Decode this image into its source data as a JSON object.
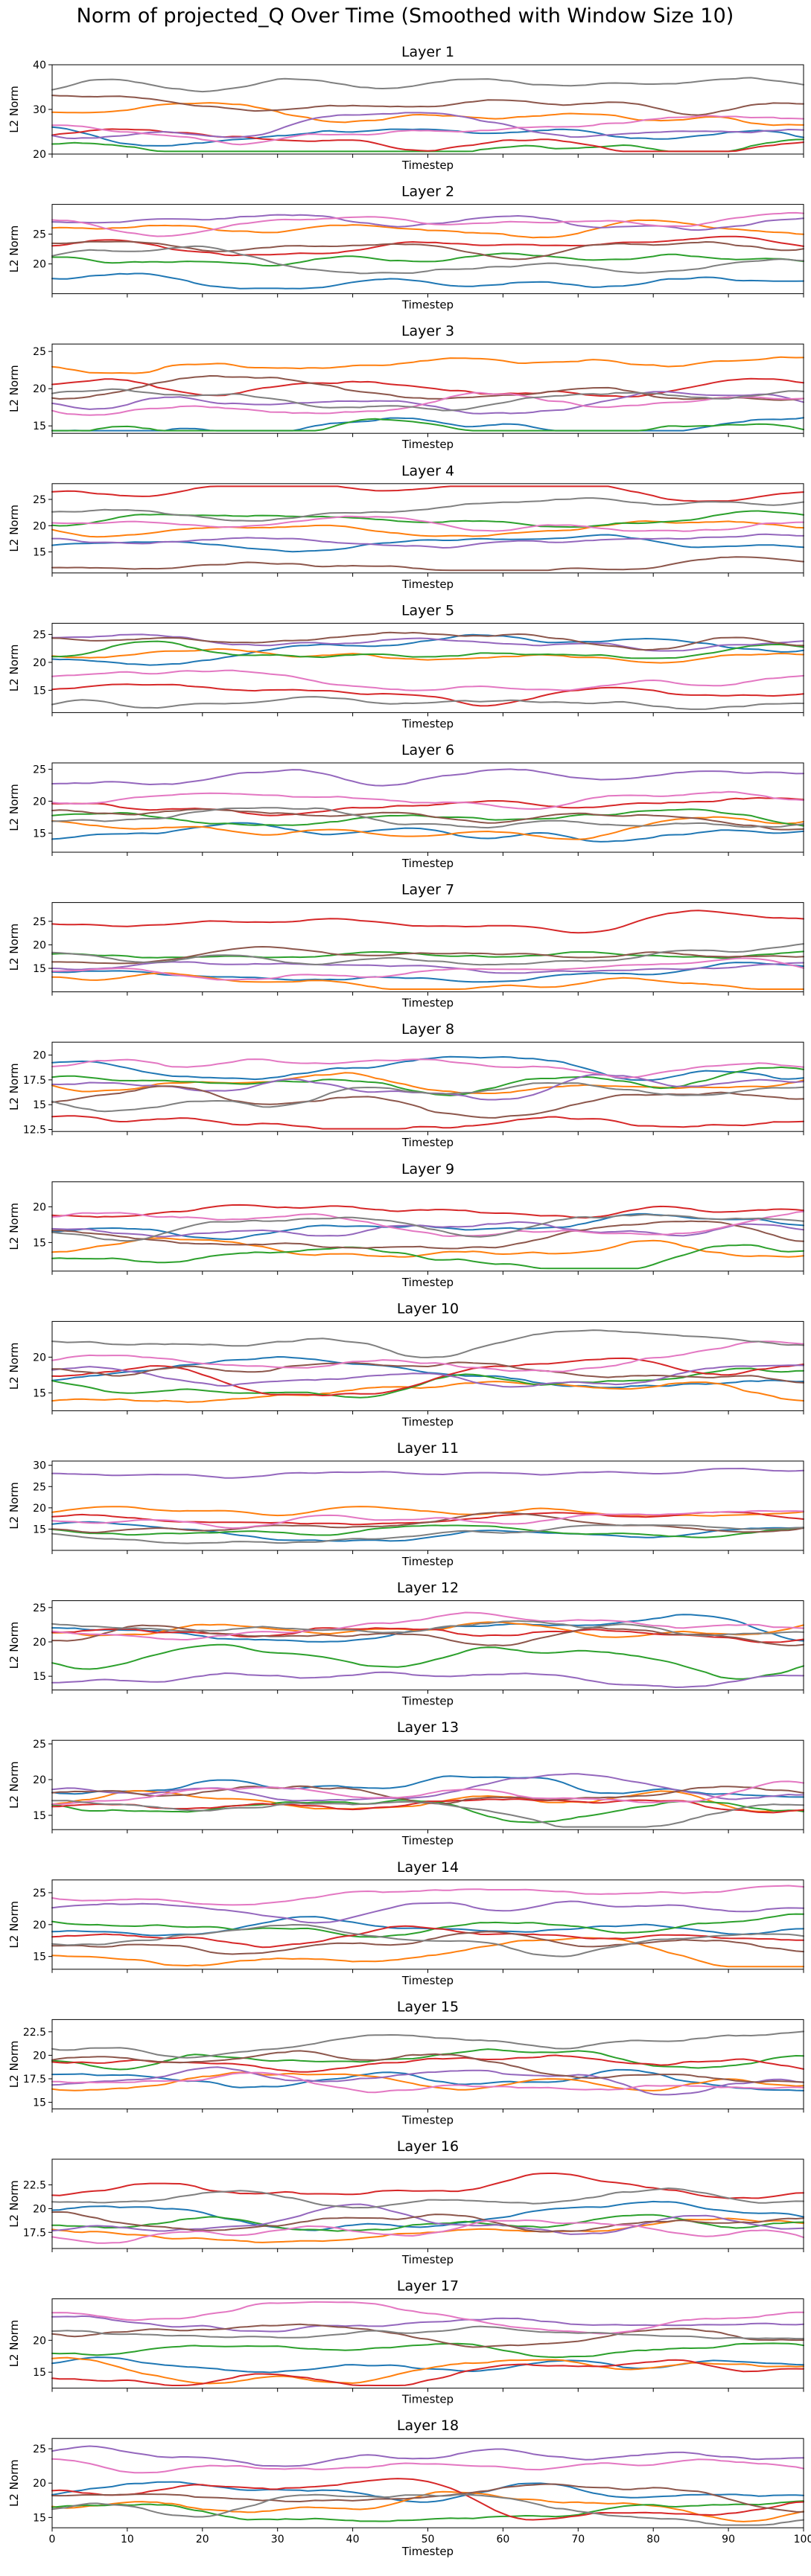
{
  "chart_data": {
    "type": "line",
    "title": "Norm of projected_Q Over Time (Smoothed with Window Size 10)",
    "xlabel": "Timestep",
    "ylabel": "L2 Norm",
    "grid": false,
    "xlim": [
      0,
      100
    ],
    "x_ticks": [
      0,
      10,
      20,
      30,
      40,
      50,
      60,
      70,
      80,
      90,
      100
    ],
    "colors": [
      "#1f77b4",
      "#ff7f0e",
      "#2ca02c",
      "#d62728",
      "#9467bd",
      "#8c564b",
      "#e377c2",
      "#7f7f7f"
    ],
    "panels": [
      {
        "title": "Layer 1",
        "ylim": [
          20,
          40
        ],
        "yticks": [
          20,
          30,
          40
        ],
        "levels": [
          24.5,
          29.5,
          22.0,
          23.5,
          26.5,
          31.5,
          25.5,
          35.5
        ],
        "amp": 1.2
      },
      {
        "title": "Layer 2",
        "ylim": [
          15,
          30
        ],
        "yticks": [
          20,
          25
        ],
        "levels": [
          17.5,
          26.0,
          20.5,
          22.5,
          27.5,
          23.0,
          27.0,
          21.0
        ],
        "amp": 0.8
      },
      {
        "title": "Layer 3",
        "ylim": [
          14,
          26
        ],
        "yticks": [
          15,
          20,
          25
        ],
        "levels": [
          14.5,
          23.5,
          15.0,
          20.0,
          18.0,
          19.5,
          18.5,
          19.0
        ],
        "amp": 0.8
      },
      {
        "title": "Layer 4",
        "ylim": [
          11,
          28
        ],
        "yticks": [
          15,
          20,
          25
        ],
        "levels": [
          16.0,
          20.5,
          22.0,
          25.5,
          17.0,
          13.0,
          21.5,
          23.0
        ],
        "amp": 0.8
      },
      {
        "title": "Layer 5",
        "ylim": [
          11,
          27
        ],
        "yticks": [
          15,
          20,
          25
        ],
        "levels": [
          22.5,
          21.0,
          21.5,
          15.0,
          24.0,
          24.5,
          17.0,
          12.5
        ],
        "amp": 0.8
      },
      {
        "title": "Layer 6",
        "ylim": [
          12,
          26
        ],
        "yticks": [
          15,
          20,
          25
        ],
        "levels": [
          14.5,
          16.5,
          17.0,
          20.5,
          23.0,
          18.0,
          20.0,
          17.0
        ],
        "amp": 0.8
      },
      {
        "title": "Layer 7",
        "ylim": [
          10,
          29
        ],
        "yticks": [
          15,
          20,
          25
        ],
        "levels": [
          14.5,
          12.0,
          18.5,
          24.5,
          15.0,
          17.5,
          14.0,
          18.0
        ],
        "amp": 0.8
      },
      {
        "title": "Layer 8",
        "ylim": [
          12.3,
          21.3
        ],
        "yticks": [
          12.5,
          15.0,
          17.5,
          20.0
        ],
        "levels": [
          19.0,
          17.5,
          17.5,
          13.5,
          17.0,
          15.0,
          18.5,
          16.0
        ],
        "amp": 0.6
      },
      {
        "title": "Layer 9",
        "ylim": [
          11,
          23.5
        ],
        "yticks": [
          15,
          20
        ],
        "levels": [
          17.0,
          14.0,
          12.5,
          19.5,
          16.5,
          16.0,
          18.5,
          17.0
        ],
        "amp": 0.8
      },
      {
        "title": "Layer 10",
        "ylim": [
          12.5,
          25
        ],
        "yticks": [
          15,
          20
        ],
        "levels": [
          16.5,
          14.5,
          17.0,
          17.5,
          17.0,
          17.5,
          19.5,
          22.0
        ],
        "amp": 0.8
      },
      {
        "title": "Layer 11",
        "ylim": [
          10,
          31
        ],
        "yticks": [
          15,
          20,
          25,
          30
        ],
        "levels": [
          14.0,
          19.5,
          15.5,
          17.0,
          27.5,
          16.0,
          17.5,
          13.5
        ],
        "amp": 0.8
      },
      {
        "title": "Layer 12",
        "ylim": [
          13,
          26
        ],
        "yticks": [
          15,
          20,
          25
        ],
        "levels": [
          21.5,
          22.0,
          17.5,
          21.5,
          15.0,
          21.0,
          22.0,
          22.5
        ],
        "amp": 0.8
      },
      {
        "title": "Layer 13",
        "ylim": [
          13,
          25.5
        ],
        "yticks": [
          15,
          20,
          25
        ],
        "levels": [
          19.5,
          16.5,
          15.5,
          17.0,
          18.5,
          17.5,
          18.0,
          16.0
        ],
        "amp": 0.8
      },
      {
        "title": "Layer 14",
        "ylim": [
          13,
          27
        ],
        "yticks": [
          15,
          20,
          25
        ],
        "levels": [
          19.0,
          15.0,
          20.0,
          18.0,
          22.5,
          16.5,
          25.0,
          17.5
        ],
        "amp": 0.8
      },
      {
        "title": "Layer 15",
        "ylim": [
          14.3,
          23.8
        ],
        "yticks": [
          15.0,
          17.5,
          20.0,
          22.5
        ],
        "levels": [
          17.0,
          17.5,
          20.0,
          19.0,
          17.5,
          19.0,
          16.5,
          21.0
        ],
        "amp": 0.6
      },
      {
        "title": "Layer 16",
        "ylim": [
          15.8,
          25.2
        ],
        "yticks": [
          17.5,
          20.0,
          22.5
        ],
        "levels": [
          19.0,
          18.0,
          18.5,
          21.5,
          18.0,
          18.5,
          17.5,
          21.5
        ],
        "amp": 0.6
      },
      {
        "title": "Layer 17",
        "ylim": [
          12.5,
          26.5
        ],
        "yticks": [
          15,
          20
        ],
        "levels": [
          16.0,
          15.5,
          18.5,
          14.5,
          23.5,
          20.5,
          24.0,
          21.5
        ],
        "amp": 0.8
      },
      {
        "title": "Layer 18",
        "ylim": [
          13.5,
          26.5
        ],
        "yticks": [
          15,
          20,
          25
        ],
        "levels": [
          19.0,
          17.5,
          16.0,
          18.0,
          24.0,
          18.5,
          23.0,
          16.5
        ],
        "amp": 0.8
      }
    ]
  }
}
